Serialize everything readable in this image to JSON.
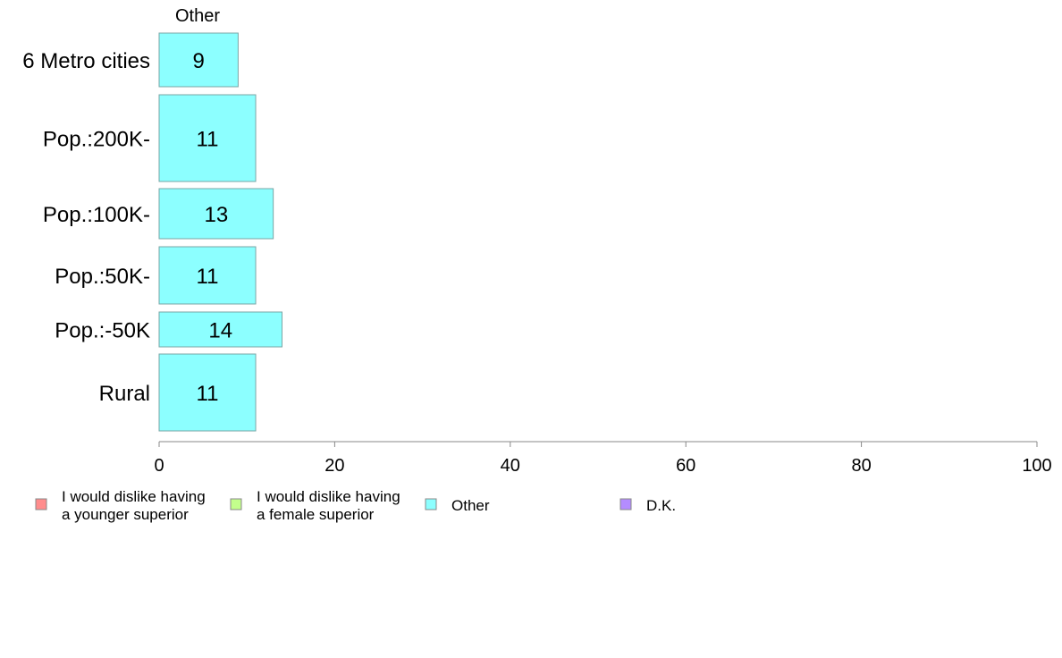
{
  "chart_data": {
    "type": "bar",
    "orientation": "horizontal",
    "stacked": true,
    "column_header": "Other",
    "categories": [
      "6 Metro cities",
      "Pop.:200K-",
      "Pop.:100K-",
      "Pop.:50K-",
      "Pop.:-50K",
      "Rural"
    ],
    "series": [
      {
        "name": "I would dislike having a younger superior",
        "values": [
          0,
          0,
          0,
          0,
          0,
          0
        ]
      },
      {
        "name": "I would dislike having a female superior",
        "values": [
          0,
          0,
          0,
          0,
          0,
          0
        ]
      },
      {
        "name": "Other",
        "values": [
          9,
          11,
          13,
          11,
          14,
          11
        ]
      },
      {
        "name": "D.K.",
        "values": [
          0,
          0,
          0,
          0,
          0,
          0
        ]
      }
    ],
    "data_labels": [
      "9",
      "11",
      "13",
      "11",
      "14",
      "11"
    ],
    "x_ticks": [
      "0",
      "20",
      "40",
      "60",
      "80",
      "100"
    ],
    "xlim": [
      0,
      100
    ],
    "grid": false,
    "legend": {
      "position": "bottom",
      "items": [
        {
          "lines": [
            "I would dislike having",
            "a younger superior"
          ],
          "color": "#ff8c8c"
        },
        {
          "lines": [
            "I would dislike having",
            "a female superior"
          ],
          "color": "#c3ff8c"
        },
        {
          "lines": [
            "Other"
          ],
          "color": "#8cffff"
        },
        {
          "lines": [
            "D.K."
          ],
          "color": "#b48cff"
        }
      ]
    },
    "colors": {
      "bar_fill": "#8cffff",
      "bar_stroke": "#7aa5a5",
      "axis": "#888888"
    }
  }
}
